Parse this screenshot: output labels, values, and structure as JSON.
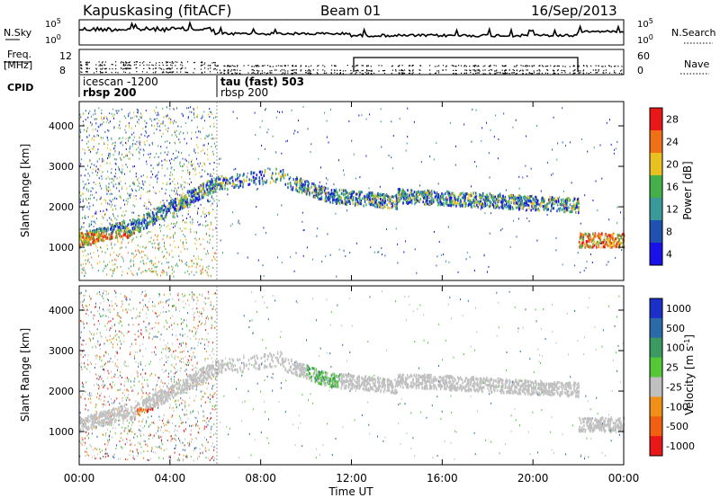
{
  "header": {
    "station": "Kapuskasing (fitACF)",
    "beam": "Beam 01",
    "date": "16/Sep/2013"
  },
  "chart_data": [
    {
      "type": "line",
      "panel": "noise",
      "labels": {
        "left": "N.Sky",
        "right": "N.Search",
        "yticks_left": [
          "10^5",
          "10^0"
        ],
        "yticks_right": [
          "10^5",
          "10^0"
        ]
      },
      "series": [
        {
          "name": "N.Sky",
          "style": "solid"
        },
        {
          "name": "N.Search",
          "style": "dotted"
        }
      ]
    },
    {
      "type": "line",
      "panel": "frequency",
      "labels": {
        "left_top": "Freq.",
        "left_bottom": "[MHz]",
        "right": "Nave",
        "yticks_left": [
          "12",
          "8"
        ],
        "yticks_right": [
          "60",
          "0"
        ]
      }
    },
    {
      "type": "table",
      "panel": "cpid",
      "label": "CPID",
      "segments": [
        {
          "start_hour": 0,
          "line1": "icescan -1200",
          "line2": "rbsp 200"
        },
        {
          "start_hour": 6,
          "line1": "tau (fast) 503",
          "line2": "rbsp 200"
        }
      ]
    },
    {
      "type": "heatmap",
      "panel": "power",
      "ylabel": "Slant Range [km]",
      "ylim": [
        180,
        4600
      ],
      "yticks": [
        "1000",
        "2000",
        "3000",
        "4000"
      ],
      "xlim_hours": [
        0,
        24
      ],
      "colorbar": {
        "label": "Power [dB]",
        "ticks": [
          "4",
          "8",
          "12",
          "16",
          "20",
          "24",
          "28"
        ],
        "colors": [
          "#1a10e8",
          "#2050b0",
          "#3a9a9a",
          "#45b04a",
          "#e8c020",
          "#f07018",
          "#e81818"
        ]
      }
    },
    {
      "type": "heatmap",
      "panel": "velocity",
      "ylabel": "Slant Range [km]",
      "ylim": [
        180,
        4600
      ],
      "yticks": [
        "1000",
        "2000",
        "3000",
        "4000"
      ],
      "xlim_hours": [
        0,
        24
      ],
      "colorbar": {
        "label": "Velocity [m s^-1]",
        "ticks": [
          "1000",
          "500",
          "100",
          "25",
          "-25",
          "-100",
          "-500",
          "-1000"
        ],
        "colors": [
          "#1a30c8",
          "#2a6aa8",
          "#3a9a60",
          "#55c838",
          "#c0c0c0",
          "#f09018",
          "#f06010",
          "#e81818"
        ]
      }
    }
  ],
  "xaxis": {
    "label": "Time UT",
    "ticks": [
      "00:00",
      "04:00",
      "08:00",
      "12:00",
      "16:00",
      "20:00",
      "00:00"
    ]
  }
}
